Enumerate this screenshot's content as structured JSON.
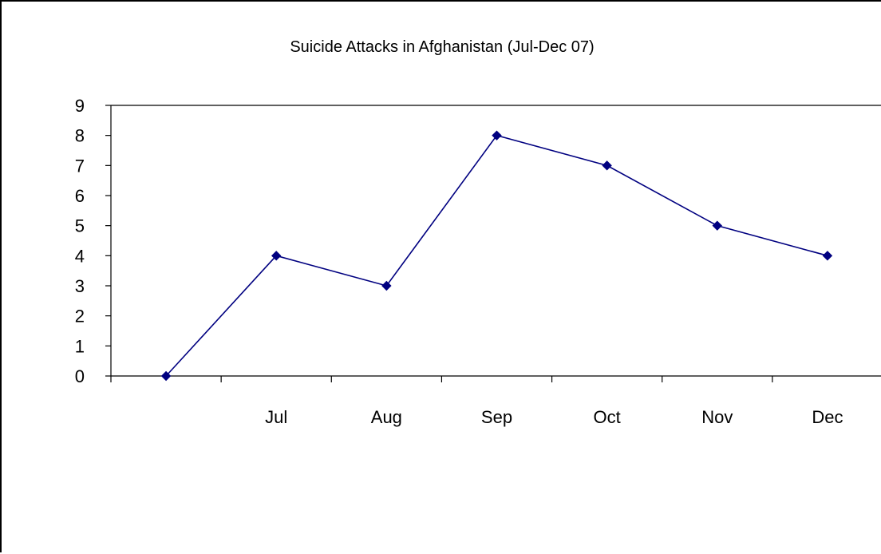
{
  "chart_data": {
    "type": "line",
    "title": "Suicide Attacks in Afghanistan (Jul-Dec 07)",
    "categories": [
      "",
      "Jul",
      "Aug",
      "Sep",
      "Oct",
      "Nov",
      "Dec"
    ],
    "series": [
      {
        "values": [
          0,
          4,
          3,
          8,
          7,
          5,
          4
        ],
        "color": "#000080",
        "marker": "diamond"
      }
    ],
    "ylim": [
      0,
      9
    ],
    "yticks": [
      0,
      1,
      2,
      3,
      4,
      5,
      6,
      7,
      8,
      9
    ],
    "grid": false,
    "legend": "none"
  }
}
